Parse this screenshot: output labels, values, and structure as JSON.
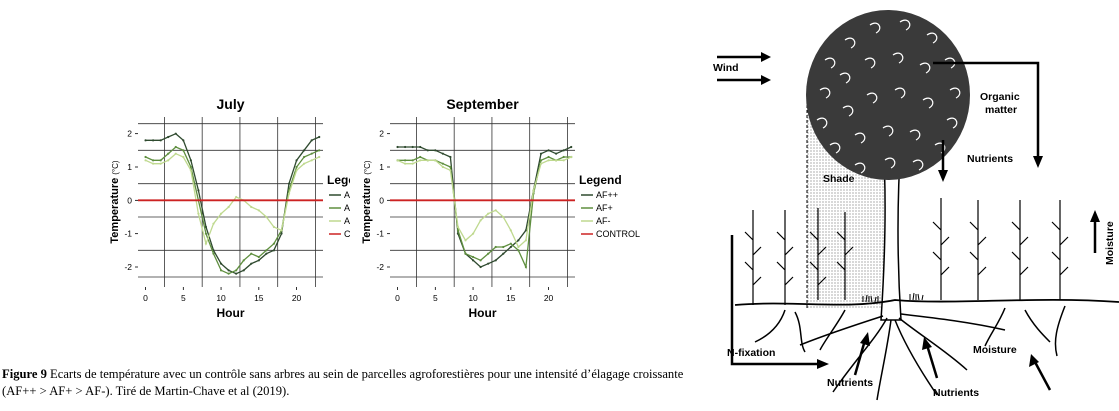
{
  "chart_data": [
    {
      "type": "line",
      "title": "July",
      "xlabel": "Hour",
      "ylabel": "Temperature (°C)",
      "xlim": [
        -1,
        23.5
      ],
      "ylim": [
        -2.6,
        2.5
      ],
      "xticks": [
        0,
        5,
        10,
        15,
        20
      ],
      "yticks": [
        -2,
        -1,
        0,
        1,
        2
      ],
      "grid": true,
      "legend_title": "Legend",
      "legend_position": "right",
      "colors": {
        "AF++": "#2f4a2f",
        "AF+": "#5f8f3f",
        "AF-": "#bfd98f",
        "CONTROL": "#cc2222"
      },
      "series": [
        {
          "name": "AF++",
          "x": [
            0,
            1,
            2,
            3,
            4,
            5,
            6,
            7,
            8,
            9,
            10,
            11,
            12,
            13,
            14,
            15,
            16,
            17,
            18,
            19,
            20,
            21,
            22,
            23
          ],
          "y": [
            1.8,
            1.8,
            1.8,
            1.9,
            2.0,
            1.8,
            1.2,
            0.3,
            -0.8,
            -1.5,
            -1.9,
            -2.1,
            -2.2,
            -2.1,
            -1.9,
            -1.8,
            -1.6,
            -1.5,
            -1.0,
            0.5,
            1.2,
            1.5,
            1.8,
            1.9
          ]
        },
        {
          "name": "AF+",
          "x": [
            0,
            1,
            2,
            3,
            4,
            5,
            6,
            7,
            8,
            9,
            10,
            11,
            12,
            13,
            14,
            15,
            16,
            17,
            18,
            19,
            20,
            21,
            22,
            23
          ],
          "y": [
            1.3,
            1.2,
            1.2,
            1.4,
            1.6,
            1.5,
            1.0,
            0.0,
            -1.0,
            -1.6,
            -2.1,
            -2.2,
            -2.1,
            -1.8,
            -1.6,
            -1.7,
            -1.5,
            -1.3,
            -0.9,
            0.3,
            1.0,
            1.3,
            1.4,
            1.5
          ]
        },
        {
          "name": "AF-",
          "x": [
            0,
            1,
            2,
            3,
            4,
            5,
            6,
            7,
            8,
            9,
            10,
            11,
            12,
            13,
            14,
            15,
            16,
            17,
            18,
            19,
            20,
            21,
            22,
            23
          ],
          "y": [
            1.2,
            1.1,
            1.1,
            1.2,
            1.4,
            1.3,
            0.9,
            -0.4,
            -1.3,
            -0.7,
            -0.4,
            -0.2,
            0.1,
            0.0,
            -0.2,
            -0.3,
            -0.5,
            -0.8,
            -0.9,
            0.2,
            0.9,
            1.1,
            1.2,
            1.3
          ]
        },
        {
          "name": "CONTROL",
          "x": [
            -1,
            23.5
          ],
          "y": [
            0,
            0
          ]
        }
      ]
    },
    {
      "type": "line",
      "title": "September",
      "xlabel": "Hour",
      "ylabel": "Temperature (°C)",
      "xlim": [
        -1,
        23.5
      ],
      "ylim": [
        -2.6,
        2.5
      ],
      "xticks": [
        0,
        5,
        10,
        15,
        20
      ],
      "yticks": [
        -2,
        -1,
        0,
        1,
        2
      ],
      "grid": true,
      "legend_title": "Legend",
      "legend_position": "right",
      "colors": {
        "AF++": "#2f4a2f",
        "AF+": "#5f8f3f",
        "AF-": "#bfd98f",
        "CONTROL": "#cc2222"
      },
      "series": [
        {
          "name": "AF++",
          "x": [
            0,
            1,
            2,
            3,
            4,
            5,
            6,
            7,
            8,
            9,
            10,
            11,
            12,
            13,
            14,
            15,
            16,
            17,
            18,
            19,
            20,
            21,
            22,
            23
          ],
          "y": [
            1.6,
            1.6,
            1.6,
            1.6,
            1.5,
            1.5,
            1.4,
            1.3,
            -1.0,
            -1.6,
            -1.8,
            -2.0,
            -1.9,
            -1.8,
            -1.6,
            -1.4,
            -1.2,
            -0.9,
            0.3,
            1.4,
            1.5,
            1.4,
            1.5,
            1.6
          ]
        },
        {
          "name": "AF+",
          "x": [
            0,
            1,
            2,
            3,
            4,
            5,
            6,
            7,
            8,
            9,
            10,
            11,
            12,
            13,
            14,
            15,
            16,
            17,
            18,
            19,
            20,
            21,
            22,
            23
          ],
          "y": [
            1.2,
            1.2,
            1.2,
            1.3,
            1.2,
            1.2,
            1.1,
            1.0,
            -0.9,
            -1.6,
            -1.7,
            -1.8,
            -1.6,
            -1.4,
            -1.4,
            -1.3,
            -1.5,
            -2.0,
            0.2,
            1.2,
            1.3,
            1.2,
            1.3,
            1.3
          ]
        },
        {
          "name": "AF-",
          "x": [
            0,
            1,
            2,
            3,
            4,
            5,
            6,
            7,
            8,
            9,
            10,
            11,
            12,
            13,
            14,
            15,
            16,
            17,
            18,
            19,
            20,
            21,
            22,
            23
          ],
          "y": [
            1.2,
            1.1,
            1.1,
            1.2,
            1.2,
            1.2,
            1.0,
            0.9,
            -0.8,
            -1.2,
            -1.0,
            -0.6,
            -0.4,
            -0.3,
            -0.5,
            -0.9,
            -1.4,
            -1.2,
            0.3,
            1.1,
            1.2,
            1.2,
            1.2,
            1.3
          ]
        },
        {
          "name": "CONTROL",
          "x": [
            -1,
            23.5
          ],
          "y": [
            0,
            0
          ]
        }
      ]
    }
  ],
  "caption": {
    "label": "Figure 9",
    "text": "Ecarts de température avec un contrôle sans arbres au sein de parcelles agroforestières pour une intensité d’élagage croissante (AF++ > AF+ > AF-). Tiré de Martin-Chave et al (2019)."
  },
  "diagram": {
    "wind": "Wind",
    "organic_matter_line1": "Organic",
    "organic_matter_line2": "matter",
    "nutrients_top": "Nutrients",
    "shade": "Shade",
    "moisture_right": "Moisture",
    "n_fixation": "N-fixation",
    "nutrients_left": "Nutrients",
    "nutrients_mid": "Nutrients",
    "moisture_bottom": "Moisture"
  }
}
